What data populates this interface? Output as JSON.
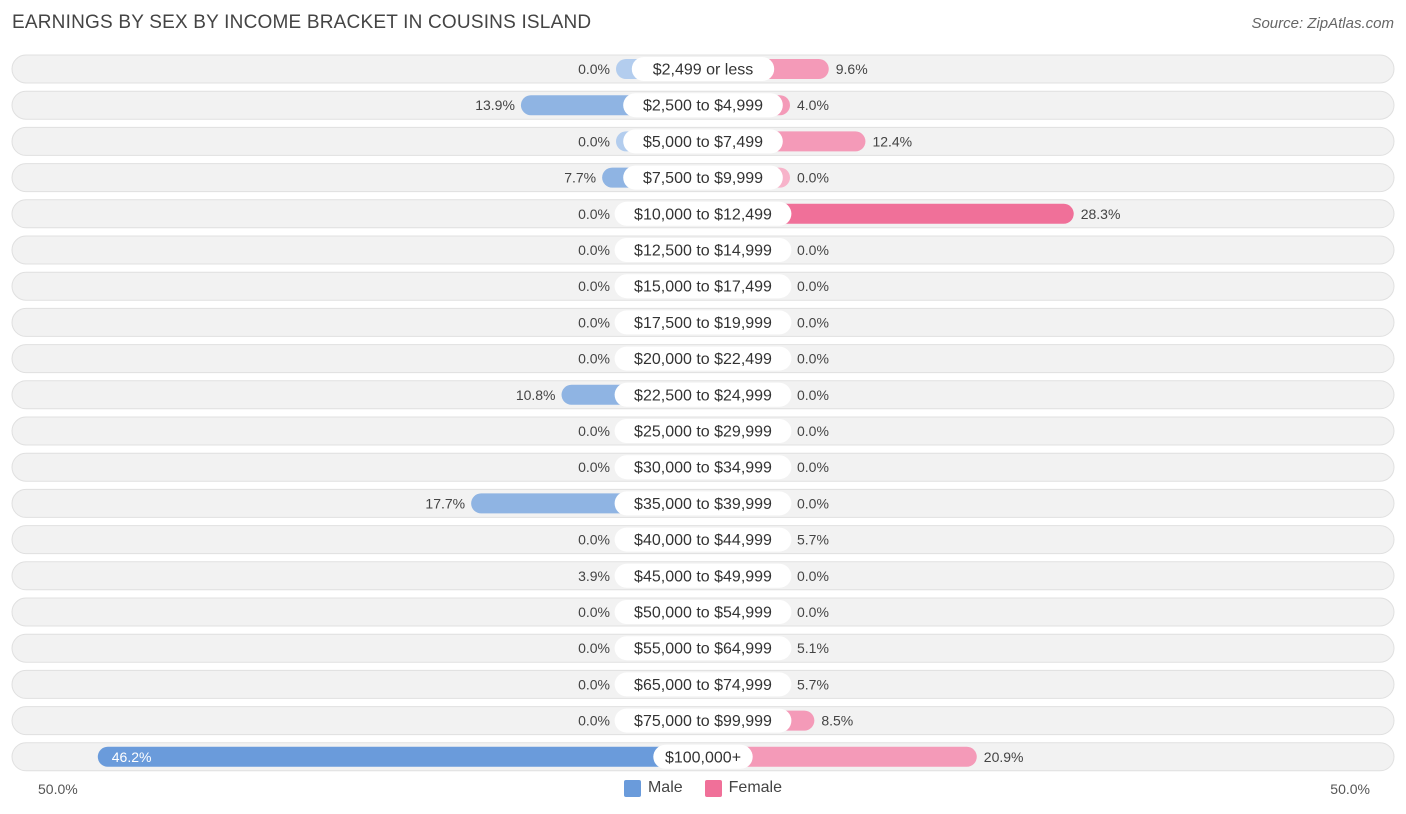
{
  "chart_data": {
    "type": "bar",
    "orientation": "horizontal-diverging",
    "title": "EARNINGS BY SEX BY INCOME BRACKET IN COUSINS ISLAND",
    "source": "Source: ZipAtlas.com",
    "categories": [
      "$2,499 or less",
      "$2,500 to $4,999",
      "$5,000 to $7,499",
      "$7,500 to $9,999",
      "$10,000 to $12,499",
      "$12,500 to $14,999",
      "$15,000 to $17,499",
      "$17,500 to $19,999",
      "$20,000 to $22,499",
      "$22,500 to $24,999",
      "$25,000 to $29,999",
      "$30,000 to $34,999",
      "$35,000 to $39,999",
      "$40,000 to $44,999",
      "$45,000 to $49,999",
      "$50,000 to $54,999",
      "$55,000 to $64,999",
      "$65,000 to $74,999",
      "$75,000 to $99,999",
      "$100,000+"
    ],
    "series": [
      {
        "name": "Male",
        "color": "#8fb4e3",
        "color_strong": "#6a9bdb",
        "values": [
          0.0,
          13.9,
          0.0,
          7.7,
          0.0,
          0.0,
          0.0,
          0.0,
          0.0,
          10.8,
          0.0,
          0.0,
          17.7,
          0.0,
          3.9,
          0.0,
          0.0,
          0.0,
          0.0,
          46.2
        ],
        "labels": [
          "0.0%",
          "13.9%",
          "0.0%",
          "7.7%",
          "0.0%",
          "0.0%",
          "0.0%",
          "0.0%",
          "0.0%",
          "10.8%",
          "0.0%",
          "0.0%",
          "17.7%",
          "0.0%",
          "3.9%",
          "0.0%",
          "0.0%",
          "0.0%",
          "0.0%",
          "46.2%"
        ]
      },
      {
        "name": "Female",
        "color": "#f49ab8",
        "color_strong": "#f07099",
        "values": [
          9.6,
          4.0,
          12.4,
          0.0,
          28.3,
          0.0,
          0.0,
          0.0,
          0.0,
          0.0,
          0.0,
          0.0,
          0.0,
          5.7,
          0.0,
          0.0,
          5.1,
          5.7,
          8.5,
          20.9
        ],
        "labels": [
          "9.6%",
          "4.0%",
          "12.4%",
          "0.0%",
          "28.3%",
          "0.0%",
          "0.0%",
          "0.0%",
          "0.0%",
          "0.0%",
          "0.0%",
          "0.0%",
          "0.0%",
          "5.7%",
          "0.0%",
          "0.0%",
          "5.1%",
          "5.7%",
          "8.5%",
          "20.9%"
        ]
      }
    ],
    "xlim": [
      -50,
      50
    ],
    "axis_labels": {
      "left": "50.0%",
      "right": "50.0%"
    },
    "legend": [
      {
        "name": "Male",
        "color": "#6a9bdb"
      },
      {
        "name": "Female",
        "color": "#f07099"
      }
    ],
    "legend_position": "bottom-center"
  }
}
